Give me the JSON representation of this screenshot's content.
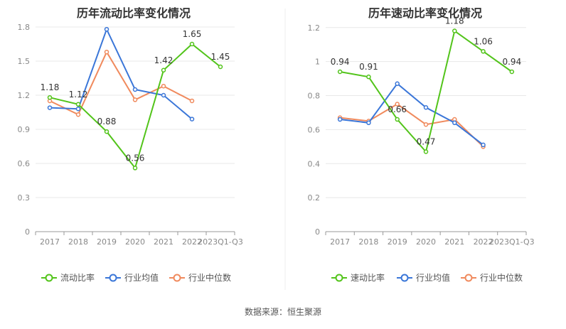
{
  "chart_data": [
    {
      "type": "line",
      "title": "历年流动比率变化情况",
      "categories": [
        "2017",
        "2018",
        "2019",
        "2020",
        "2021",
        "2022",
        "2023Q1-Q3"
      ],
      "yticks": [
        "0",
        "0.3",
        "0.6",
        "0.9",
        "1.2",
        "1.5",
        "1.8"
      ],
      "ylim": [
        0,
        1.9
      ],
      "series": [
        {
          "name": "流动比率",
          "color": "#52c41a",
          "labeled": true,
          "values": [
            1.18,
            1.12,
            0.88,
            0.56,
            1.42,
            1.65,
            1.45
          ],
          "labels": [
            "1.18",
            "1.12",
            "0.88",
            "0.56",
            "1.42",
            "1.65",
            "1.45"
          ]
        },
        {
          "name": "行业均值",
          "color": "#3a76d8",
          "labeled": false,
          "values": [
            1.09,
            1.08,
            1.78,
            1.25,
            1.2,
            0.99,
            null
          ]
        },
        {
          "name": "行业中位数",
          "color": "#f08a5d",
          "labeled": false,
          "values": [
            1.15,
            1.03,
            1.58,
            1.16,
            1.28,
            1.15,
            null
          ]
        }
      ],
      "legend_position": "bottom",
      "grid": true
    },
    {
      "type": "line",
      "title": "历年速动比率变化情况",
      "categories": [
        "2017",
        "2018",
        "2019",
        "2020",
        "2021",
        "2022",
        "2023Q1-Q3"
      ],
      "yticks": [
        "0",
        "0.2",
        "0.4",
        "0.6",
        "0.8",
        "1",
        "1.2"
      ],
      "ylim": [
        0,
        1.27
      ],
      "series": [
        {
          "name": "速动比率",
          "color": "#52c41a",
          "labeled": true,
          "values": [
            0.94,
            0.91,
            0.66,
            0.47,
            1.18,
            1.06,
            0.94
          ],
          "labels": [
            "0.94",
            "0.91",
            "0.66",
            "0.47",
            "1.18",
            "1.06",
            "0.94"
          ]
        },
        {
          "name": "行业均值",
          "color": "#3a76d8",
          "labeled": false,
          "values": [
            0.66,
            0.64,
            0.87,
            0.73,
            0.64,
            0.51,
            null
          ]
        },
        {
          "name": "行业中位数",
          "color": "#f08a5d",
          "labeled": false,
          "values": [
            0.67,
            0.65,
            0.75,
            0.63,
            0.66,
            0.5,
            null
          ]
        }
      ],
      "legend_position": "bottom",
      "grid": true
    }
  ],
  "source": "数据来源：恒生聚源"
}
